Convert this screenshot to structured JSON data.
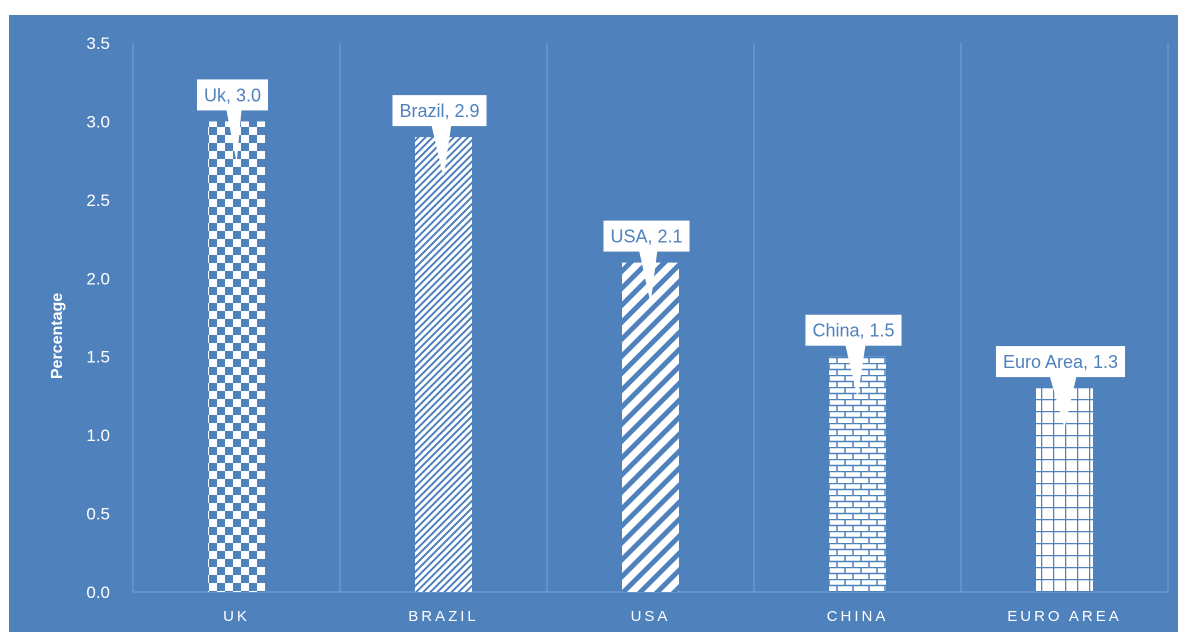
{
  "colors": {
    "background": "#4f81bd",
    "gridline": "#7ea1cf",
    "bar_fill": "#ffffff",
    "callout_text": "#4f81bd",
    "callout_fill": "#ffffff"
  },
  "chart_data": {
    "type": "bar",
    "title": "",
    "xlabel": "",
    "ylabel": "Percentage",
    "ylim": [
      0,
      3.5
    ],
    "yticks": [
      "0.0",
      "0.5",
      "1.0",
      "1.5",
      "2.0",
      "2.5",
      "3.0",
      "3.5"
    ],
    "grid": "vertical category separators",
    "legend": "none",
    "categories": [
      "UK",
      "BRAZIL",
      "USA",
      "CHINA",
      "EURO AREA"
    ],
    "values": [
      3.0,
      2.9,
      2.1,
      1.5,
      1.3
    ],
    "data_labels": [
      "Uk, 3.0",
      "Brazil, 2.9",
      "USA, 2.1",
      "China, 1.5",
      "Euro Area, 1.3"
    ],
    "fill_patterns": [
      "checkerboard",
      "fine-diagonal",
      "wide-diagonal",
      "brick",
      "grid"
    ]
  }
}
